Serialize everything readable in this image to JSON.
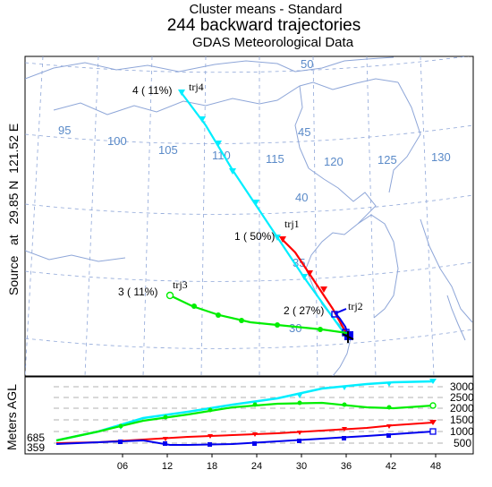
{
  "header": {
    "line1": "Cluster means - Standard",
    "line2": "244 backward trajectories",
    "line3": "GDAS Meteorological Data"
  },
  "source_label": "Source   at   29.85 N  121.52 E",
  "height_axis_label": "Meters AGL",
  "source_heights": [
    "685",
    "359"
  ],
  "height_ticks": [
    "3000",
    "2500",
    "2000",
    "1500",
    "1000",
    "500"
  ],
  "time_ticks": [
    "06",
    "12",
    "18",
    "24",
    "30",
    "36",
    "42",
    "48"
  ],
  "longitude_labels": [
    "95",
    "100",
    "105",
    "110",
    "115",
    "120",
    "125",
    "130"
  ],
  "latitude_labels": [
    "50",
    "45",
    "40",
    "35",
    "30"
  ],
  "clusters": [
    {
      "id": "trj1",
      "label": "1 ( 50%)",
      "color": "#ff0000",
      "marker": "triangle-down"
    },
    {
      "id": "trj2",
      "label": "2 ( 27%)",
      "color": "#0000ee",
      "marker": "square"
    },
    {
      "id": "trj3",
      "label": "3 ( 11%)",
      "color": "#00ee00",
      "marker": "circle"
    },
    {
      "id": "trj4",
      "label": "4 ( 11%)",
      "color": "#00eeff",
      "marker": "triangle-down"
    }
  ]
}
